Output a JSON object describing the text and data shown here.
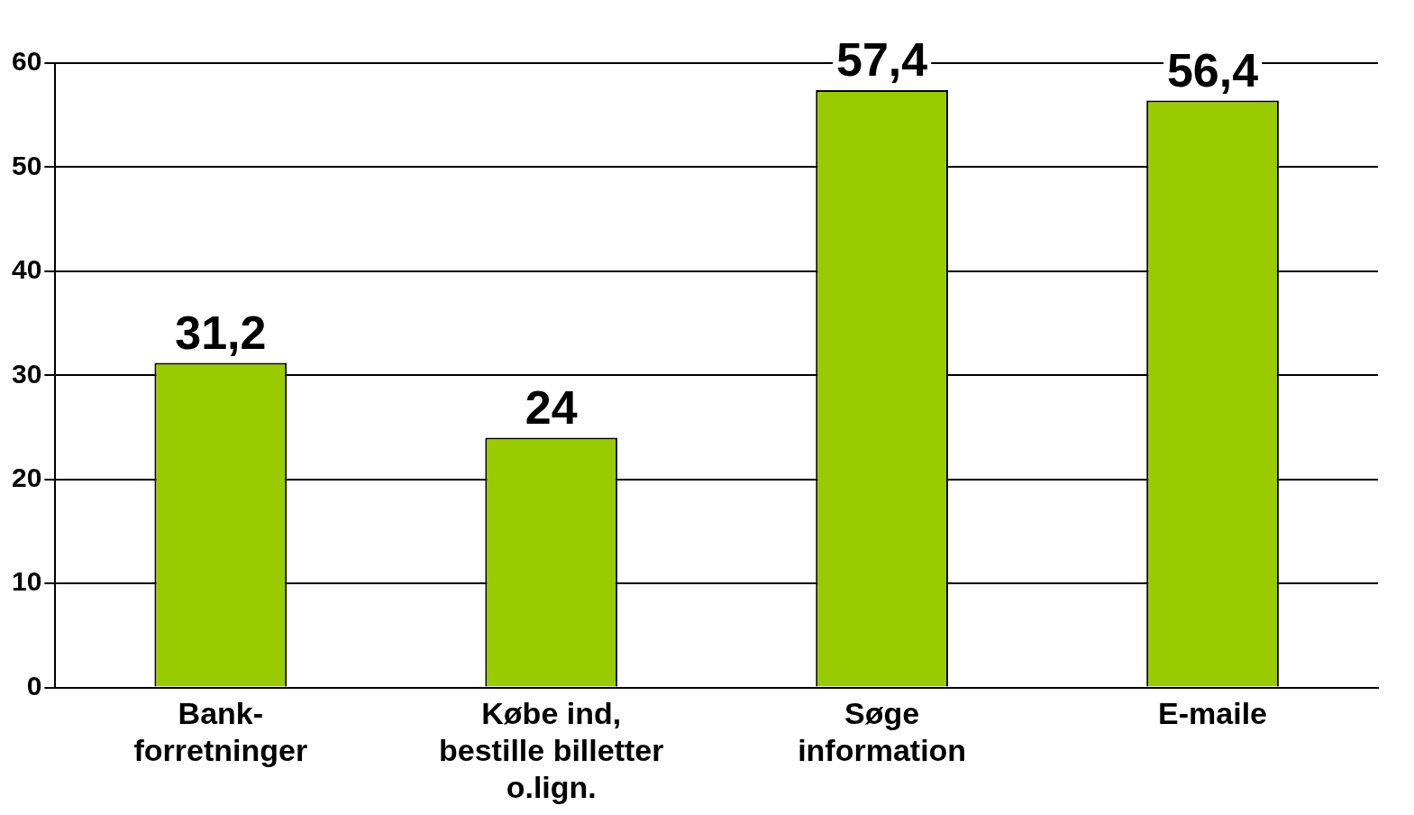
{
  "chart_data": {
    "type": "bar",
    "categories": [
      "Bank-\nforretninger",
      "Købe ind,\nbestille billetter\no.lign.",
      "Søge\ninformation",
      "E-maile"
    ],
    "values": [
      31.2,
      24,
      57.4,
      56.4
    ],
    "value_labels": [
      "31,2",
      "24",
      "57,4",
      "56,4"
    ],
    "color": "#99cc00",
    "ylim": [
      0,
      60
    ],
    "yticks": [
      0,
      10,
      20,
      30,
      40,
      50,
      60
    ],
    "grid": "y",
    "legend": false
  }
}
